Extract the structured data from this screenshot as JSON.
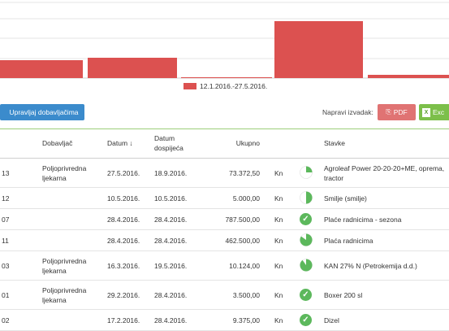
{
  "chart_data": {
    "type": "bar",
    "categories": [
      "",
      "",
      "",
      "",
      ""
    ],
    "series": [
      {
        "name": "12.1.2016.-27.5.2016.",
        "values": [
          22,
          25,
          1,
          70,
          4
        ]
      }
    ],
    "color": "#dc5150",
    "grid": true,
    "legend": "bottom-center"
  },
  "toolbar": {
    "vendors_label": "Upravljaj dobavljačima",
    "export_label": "Napravi izvadak:",
    "pdf_label": "PDF",
    "excel_label": "Exc"
  },
  "table": {
    "headers": {
      "supplier": "Dobavljač",
      "date": "Datum ↓",
      "due_date": "Datum dospijeća",
      "total": "Ukupno",
      "items": "Stavke"
    },
    "rows": [
      {
        "id": "13",
        "supplier": "Poljoprivredna ljekarna",
        "date": "27.5.2016.",
        "due": "18.9.2016.",
        "amount": "73.372,50",
        "currency": "Kn",
        "status": "pie",
        "fraction": 0.25,
        "items": "Agroleaf Power 20-20-20+ME, oprema, tractor"
      },
      {
        "id": "12",
        "supplier": "",
        "date": "10.5.2016.",
        "due": "10.5.2016.",
        "amount": "5.000,00",
        "currency": "Kn",
        "status": "pie",
        "fraction": 0.5,
        "items": "Smilje (smilje)"
      },
      {
        "id": "07",
        "supplier": "",
        "date": "28.4.2016.",
        "due": "28.4.2016.",
        "amount": "787.500,00",
        "currency": "Kn",
        "status": "paid",
        "fraction": 1,
        "items": "Plaće radnicima - sezona"
      },
      {
        "id": "11",
        "supplier": "",
        "date": "28.4.2016.",
        "due": "28.4.2016.",
        "amount": "462.500,00",
        "currency": "Kn",
        "status": "pie",
        "fraction": 0.85,
        "items": "Plaća radnicima"
      },
      {
        "id": "03",
        "supplier": "Poljoprivredna ljekarna",
        "date": "16.3.2016.",
        "due": "19.5.2016.",
        "amount": "10.124,00",
        "currency": "Kn",
        "status": "pie",
        "fraction": 0.9,
        "items": "KAN 27% N (Petrokemija d.d.)"
      },
      {
        "id": "01",
        "supplier": "Poljoprivredna ljekarna",
        "date": "29.2.2016.",
        "due": "28.4.2016.",
        "amount": "3.500,00",
        "currency": "Kn",
        "status": "paid",
        "fraction": 1,
        "items": "Boxer 200 sl"
      },
      {
        "id": "02",
        "supplier": "",
        "date": "17.2.2016.",
        "due": "28.4.2016.",
        "amount": "9.375,00",
        "currency": "Kn",
        "status": "paid",
        "fraction": 1,
        "items": "Dizel"
      }
    ]
  }
}
